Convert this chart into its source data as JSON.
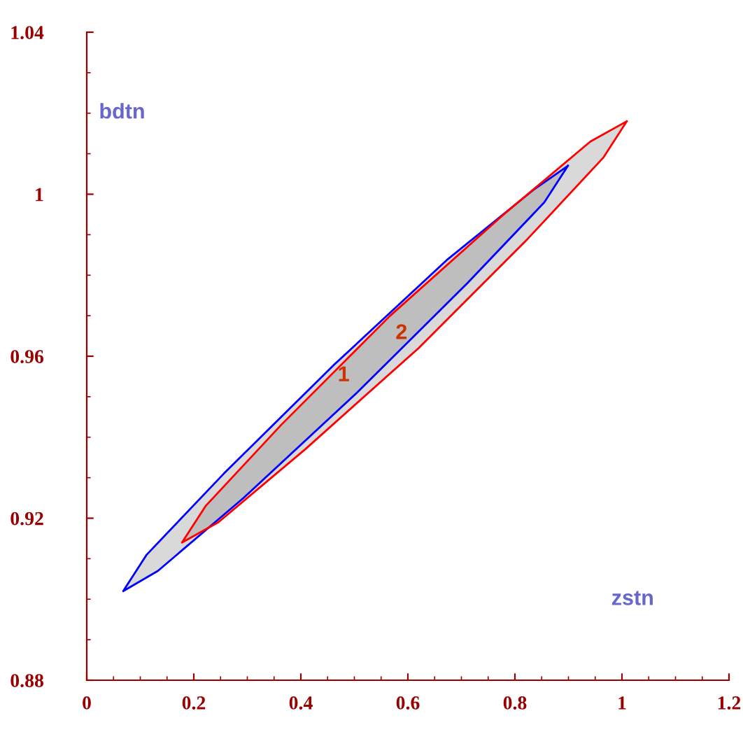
{
  "chart_data": {
    "type": "area",
    "xlabel": "zstn",
    "ylabel": "bdtn",
    "xlim": [
      0,
      1.2
    ],
    "ylim": [
      0.88,
      1.04
    ],
    "xticks": [
      0,
      0.2,
      0.4,
      0.6,
      0.8,
      1,
      1.2
    ],
    "yticks": [
      0.88,
      0.92,
      0.96,
      1,
      1.04
    ],
    "grid": false,
    "legend": false,
    "marker": "none",
    "line_style": "solid",
    "series": [
      {
        "color": "#0000ff",
        "x": [
          0.899,
          0.855,
          0.711,
          0.505,
          0.293,
          0.133,
          0.068,
          0.112,
          0.256,
          0.463,
          0.675,
          0.834,
          0.899
        ],
        "values": [
          1.007,
          0.998,
          0.978,
          0.951,
          0.925,
          0.907,
          0.902,
          0.911,
          0.931,
          0.958,
          0.984,
          1.001,
          1.007
        ]
      },
      {
        "color": "#ff0000",
        "x": [
          1.009,
          0.965,
          0.824,
          0.62,
          0.408,
          0.246,
          0.178,
          0.222,
          0.363,
          0.567,
          0.779,
          0.941,
          1.009
        ],
        "values": [
          1.018,
          1.009,
          0.989,
          0.962,
          0.937,
          0.919,
          0.914,
          0.923,
          0.943,
          0.97,
          0.995,
          1.013,
          1.018
        ]
      }
    ],
    "annotations": [
      "1",
      "2"
    ]
  }
}
